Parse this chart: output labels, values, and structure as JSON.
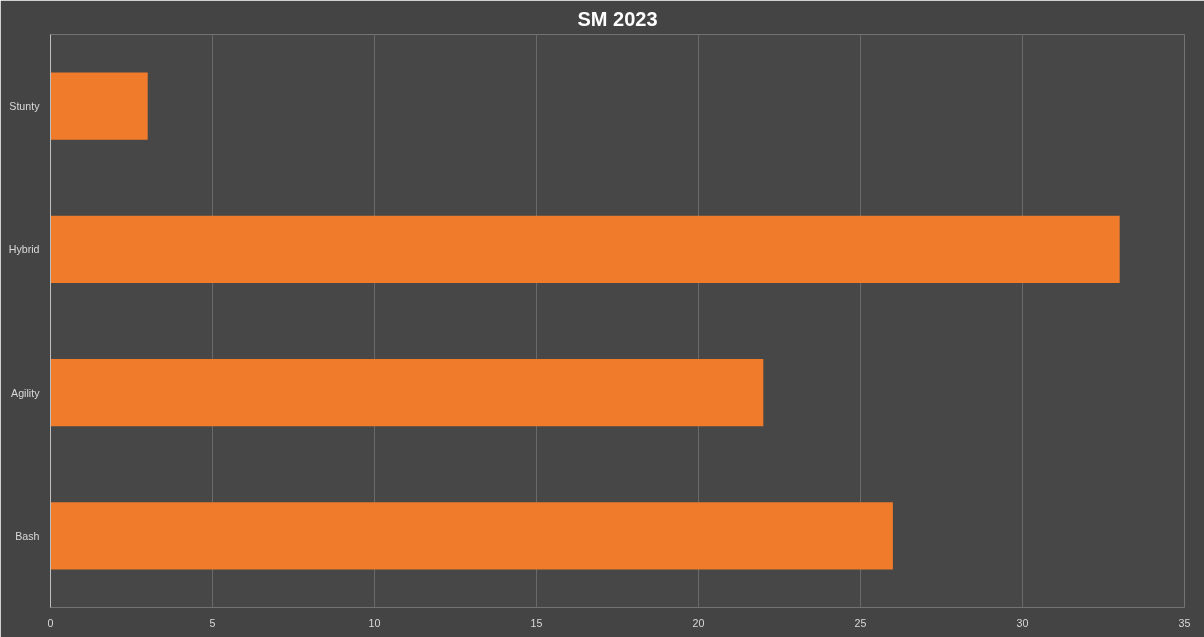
{
  "chart_data": {
    "type": "bar",
    "orientation": "horizontal",
    "title": "SM 2023",
    "categories": [
      "Stunty",
      "Hybrid",
      "Agility",
      "Bash"
    ],
    "values": [
      3,
      33,
      22,
      26
    ],
    "color": "#f07b2a",
    "xlim": [
      0,
      35
    ],
    "xticks": [
      0,
      5,
      10,
      15,
      20,
      25,
      30,
      35
    ],
    "grid": "x"
  }
}
